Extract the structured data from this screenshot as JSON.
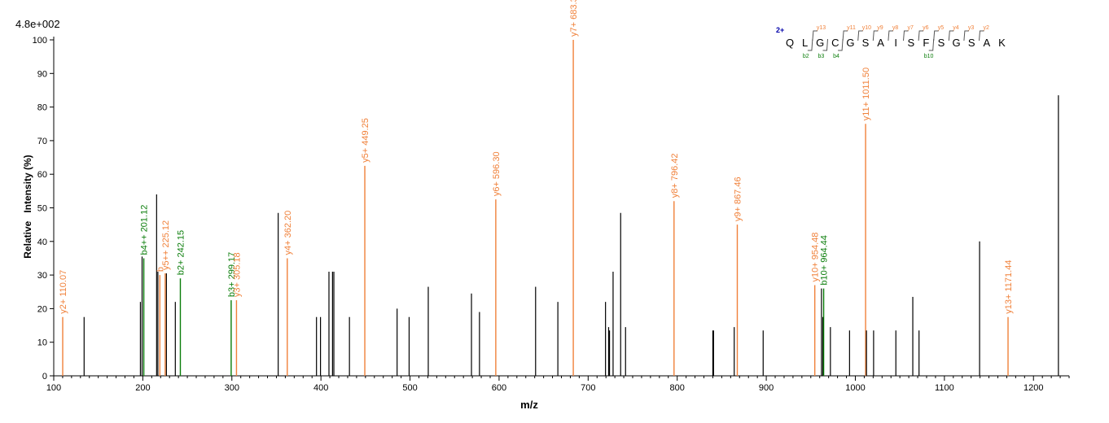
{
  "chart_data": {
    "type": "bar",
    "title": "",
    "intensity_scale": "4.8e+002",
    "xlabel": "m/z",
    "ylabel": "Relative   Intensity (%)",
    "xlim": [
      100,
      1240
    ],
    "ylim": [
      0,
      100
    ],
    "x_ticks": [
      100,
      200,
      300,
      400,
      500,
      600,
      700,
      800,
      900,
      1000,
      1100,
      1200
    ],
    "y_ticks": [
      0,
      10,
      20,
      30,
      40,
      50,
      60,
      70,
      80,
      90,
      100
    ],
    "colors": {
      "y": "#f0813a",
      "b": "#0a7d0a",
      "unassigned": "#000000",
      "charge": "#0000aa"
    },
    "peaks": [
      {
        "mz": 110.07,
        "intensity": 17.5,
        "ion": "y",
        "label": "y2+ 110.07"
      },
      {
        "mz": 134.1,
        "intensity": 17.5
      },
      {
        "mz": 197.3,
        "intensity": 22
      },
      {
        "mz": 199.2,
        "intensity": 35.5
      },
      {
        "mz": 201.12,
        "intensity": 35,
        "ion": "b",
        "label": "b4++ 201.12"
      },
      {
        "mz": 215.5,
        "intensity": 54
      },
      {
        "mz": 216.9,
        "intensity": 31
      },
      {
        "mz": 219.15,
        "intensity": 30,
        "ion": "y",
        "label": "b"
      },
      {
        "mz": 225.12,
        "intensity": 30.5,
        "ion": "y",
        "label": "y5++ 225.12"
      },
      {
        "mz": 226.5,
        "intensity": 30.5
      },
      {
        "mz": 236.5,
        "intensity": 22
      },
      {
        "mz": 242.15,
        "intensity": 29,
        "ion": "b",
        "label": "b2+ 242.15"
      },
      {
        "mz": 299.2,
        "intensity": 22.5,
        "ion": "b",
        "label": "b3+ 299.17"
      },
      {
        "mz": 305.18,
        "intensity": 22.5,
        "ion": "y",
        "label": "y3+ 305.18"
      },
      {
        "mz": 352.0,
        "intensity": 48.5
      },
      {
        "mz": 362.2,
        "intensity": 35,
        "ion": "y",
        "label": "y4+ 362.20"
      },
      {
        "mz": 395.0,
        "intensity": 17.5
      },
      {
        "mz": 399.5,
        "intensity": 17.5
      },
      {
        "mz": 409.0,
        "intensity": 31
      },
      {
        "mz": 413.0,
        "intensity": 31
      },
      {
        "mz": 414.5,
        "intensity": 31
      },
      {
        "mz": 432.0,
        "intensity": 17.5
      },
      {
        "mz": 449.25,
        "intensity": 62.5,
        "ion": "y",
        "label": "y5+ 449.25"
      },
      {
        "mz": 485.5,
        "intensity": 20
      },
      {
        "mz": 499.0,
        "intensity": 17.5
      },
      {
        "mz": 520.5,
        "intensity": 26.5
      },
      {
        "mz": 569.0,
        "intensity": 24.5
      },
      {
        "mz": 578.0,
        "intensity": 19
      },
      {
        "mz": 596.3,
        "intensity": 52.5,
        "ion": "y",
        "label": "y6+ 596.30"
      },
      {
        "mz": 641.0,
        "intensity": 26.5
      },
      {
        "mz": 666.0,
        "intensity": 22
      },
      {
        "mz": 683.33,
        "intensity": 100,
        "ion": "y",
        "label": "y7+ 683.33"
      },
      {
        "mz": 719.5,
        "intensity": 22
      },
      {
        "mz": 723.0,
        "intensity": 14.5
      },
      {
        "mz": 724.0,
        "intensity": 13.5
      },
      {
        "mz": 728.0,
        "intensity": 31
      },
      {
        "mz": 736.5,
        "intensity": 48.5
      },
      {
        "mz": 742.0,
        "intensity": 14.5
      },
      {
        "mz": 796.42,
        "intensity": 52,
        "ion": "y",
        "label": "y8+ 796.42"
      },
      {
        "mz": 840.0,
        "intensity": 13.5
      },
      {
        "mz": 840.8,
        "intensity": 13.5
      },
      {
        "mz": 864.0,
        "intensity": 14.5
      },
      {
        "mz": 867.46,
        "intensity": 45,
        "ion": "y",
        "label": "y9+ 867.46"
      },
      {
        "mz": 896.5,
        "intensity": 13.5
      },
      {
        "mz": 954.48,
        "intensity": 27,
        "ion": "y",
        "label": "y10+ 954.48"
      },
      {
        "mz": 962.0,
        "intensity": 26
      },
      {
        "mz": 963.5,
        "intensity": 17.5
      },
      {
        "mz": 964.44,
        "intensity": 26,
        "ion": "b",
        "label": "b10+ 964.44"
      },
      {
        "mz": 972.0,
        "intensity": 14.5
      },
      {
        "mz": 993.5,
        "intensity": 13.5
      },
      {
        "mz": 1011.5,
        "intensity": 75,
        "ion": "y",
        "label": "y11+ 1011.50"
      },
      {
        "mz": 1012.5,
        "intensity": 13.5
      },
      {
        "mz": 1020.5,
        "intensity": 13.5
      },
      {
        "mz": 1045.5,
        "intensity": 13.5
      },
      {
        "mz": 1064.5,
        "intensity": 23.5
      },
      {
        "mz": 1071.5,
        "intensity": 13.5
      },
      {
        "mz": 1139.5,
        "intensity": 40
      },
      {
        "mz": 1171.44,
        "intensity": 17.5,
        "ion": "y",
        "label": "y13+ 1171.44"
      },
      {
        "mz": 1228.0,
        "intensity": 83.5
      }
    ],
    "sequence": {
      "charge": "2+",
      "residues": [
        "Q",
        "L",
        "G",
        "C",
        "G",
        "S",
        "A",
        "I",
        "S",
        "F",
        "S",
        "G",
        "S",
        "A",
        "K"
      ],
      "y_labels": [
        {
          "label": "y13",
          "after": 2
        },
        {
          "label": "y11",
          "after": 4
        },
        {
          "label": "y10",
          "after": 5
        },
        {
          "label": "y9",
          "after": 6
        },
        {
          "label": "y8",
          "after": 7
        },
        {
          "label": "y7",
          "after": 8
        },
        {
          "label": "y6",
          "after": 9
        },
        {
          "label": "y5",
          "after": 10
        },
        {
          "label": "y4",
          "after": 11
        },
        {
          "label": "y3",
          "after": 12
        },
        {
          "label": "y2",
          "after": 13
        }
      ],
      "b_labels": [
        {
          "label": "b2",
          "after": 2
        },
        {
          "label": "b3",
          "after": 3
        },
        {
          "label": "b4",
          "after": 4
        },
        {
          "label": "b10",
          "after": 10
        }
      ]
    }
  }
}
